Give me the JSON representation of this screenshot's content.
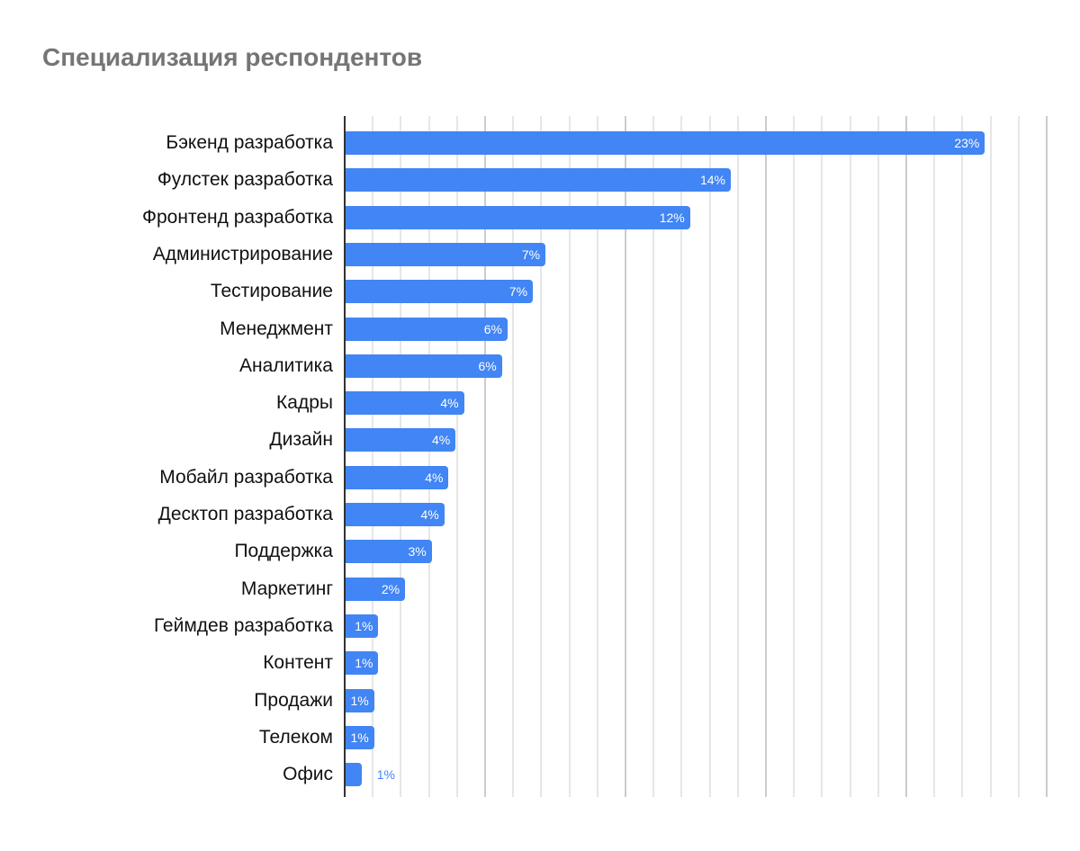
{
  "chart_data": {
    "type": "bar",
    "orientation": "horizontal",
    "title": "Специализация респондентов",
    "xlabel": "",
    "ylabel": "",
    "xlim": [
      0,
      25
    ],
    "grid": true,
    "grid_major_step": 5,
    "grid_minor_step": 1,
    "legend": null,
    "bar_color": "#4285F4",
    "categories": [
      "Бэкенд разработка",
      "Фулстек разработка",
      "Фронтенд разработка",
      "Администрирование",
      "Тестирование",
      "Менеджмент",
      "Аналитика",
      "Кадры",
      "Дизайн",
      "Мобайл разработка",
      "Десктоп разработка",
      "Поддержка",
      "Маркетинг",
      "Геймдев разработка",
      "Контент",
      "Продажи",
      "Телеком",
      "Офис"
    ],
    "values": [
      22.8,
      13.75,
      12.3,
      7.15,
      6.7,
      5.8,
      5.6,
      4.25,
      3.95,
      3.7,
      3.55,
      3.1,
      2.15,
      1.2,
      1.2,
      1.05,
      1.05,
      0.6
    ],
    "data_labels": [
      "23%",
      "14%",
      "12%",
      "7%",
      "7%",
      "6%",
      "6%",
      "4%",
      "4%",
      "4%",
      "4%",
      "3%",
      "2%",
      "1%",
      "1%",
      "1%",
      "1%",
      "1%"
    ]
  }
}
